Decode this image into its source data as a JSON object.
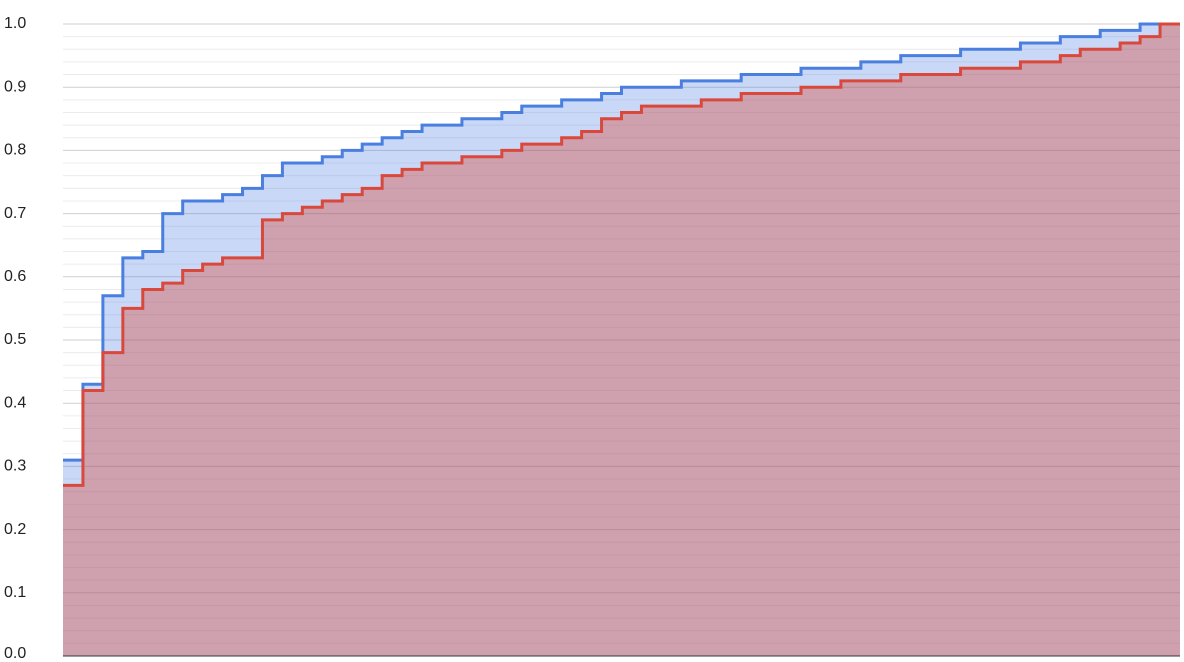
{
  "chart_data": {
    "type": "area",
    "step": true,
    "categories": [
      null,
      null,
      null,
      null,
      null,
      null,
      null,
      null,
      null,
      null,
      null,
      null,
      null,
      null,
      null,
      null,
      null,
      null,
      null,
      null,
      null,
      null,
      null,
      null,
      null,
      null,
      null,
      null,
      null,
      null,
      null,
      null,
      null,
      null,
      null,
      null,
      null,
      null,
      null,
      null,
      null,
      null,
      null,
      null,
      null,
      null,
      null,
      null,
      null,
      null,
      null,
      null,
      null,
      null,
      null,
      null
    ],
    "series": [
      {
        "color": "#4a7fe0",
        "values": [
          0.31,
          0.43,
          0.57,
          0.63,
          0.64,
          0.7,
          0.72,
          0.72,
          0.73,
          0.74,
          0.76,
          0.78,
          0.78,
          0.79,
          0.8,
          0.81,
          0.82,
          0.83,
          0.84,
          0.84,
          0.85,
          0.85,
          0.86,
          0.87,
          0.87,
          0.88,
          0.88,
          0.89,
          0.9,
          0.9,
          0.9,
          0.91,
          0.91,
          0.91,
          0.92,
          0.92,
          0.92,
          0.93,
          0.93,
          0.93,
          0.94,
          0.94,
          0.95,
          0.95,
          0.95,
          0.96,
          0.96,
          0.96,
          0.97,
          0.97,
          0.98,
          0.98,
          0.99,
          0.99,
          1.0,
          1.0
        ]
      },
      {
        "color": "#d9483b",
        "values": [
          0.27,
          0.42,
          0.48,
          0.55,
          0.58,
          0.59,
          0.61,
          0.62,
          0.63,
          0.63,
          0.69,
          0.7,
          0.71,
          0.72,
          0.73,
          0.74,
          0.76,
          0.77,
          0.78,
          0.78,
          0.79,
          0.79,
          0.8,
          0.81,
          0.81,
          0.82,
          0.83,
          0.85,
          0.86,
          0.87,
          0.87,
          0.87,
          0.88,
          0.88,
          0.89,
          0.89,
          0.89,
          0.9,
          0.9,
          0.91,
          0.91,
          0.91,
          0.92,
          0.92,
          0.92,
          0.93,
          0.93,
          0.93,
          0.94,
          0.94,
          0.95,
          0.96,
          0.96,
          0.97,
          0.98,
          1.0
        ]
      }
    ],
    "ylim": [
      0,
      1
    ],
    "yticks": [
      {
        "value": 0,
        "label": "0.0"
      },
      0.1,
      0.2,
      0.3,
      0.4,
      0.5,
      0.6,
      0.7,
      0.8,
      0.9,
      {
        "value": 1,
        "label": "1.0"
      }
    ],
    "grid": true,
    "minor_gridlines": 4
  }
}
